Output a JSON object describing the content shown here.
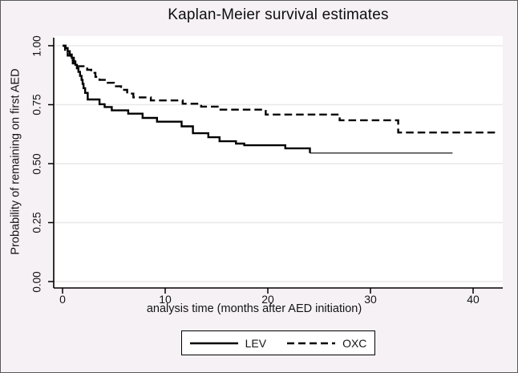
{
  "figure": {
    "bg_color": "#f6f1f5",
    "plot_bg": "#ffffff",
    "grid_color": "#e8e8e8",
    "axis_color": "#000000",
    "text_color": "#141414",
    "line_color": "#000000"
  },
  "chart_data": {
    "type": "line",
    "subtype": "kaplan-meier-step",
    "title": "Kaplan-Meier survival estimates",
    "xlabel": "analysis time (months after AED initiation)",
    "ylabel": "Probability of remaining on first AED",
    "xlim": [
      0,
      42.9
    ],
    "ylim": [
      0,
      1.04
    ],
    "x_ticks": [
      "0",
      "10",
      "20",
      "30",
      "40"
    ],
    "x_tick_values": [
      0,
      10,
      20,
      30,
      40
    ],
    "y_ticks": [
      "0.00",
      "0.25",
      "0.50",
      "0.75",
      "1.00"
    ],
    "y_tick_values": [
      0.0,
      0.25,
      0.5,
      0.75,
      1.0
    ],
    "grid": "horizontal",
    "legend_position": "bottom-center",
    "series": [
      {
        "name": "LEV",
        "line_style": "solid",
        "points": [
          [
            0,
            1.0
          ],
          [
            0.3,
            0.99
          ],
          [
            0.5,
            0.977
          ],
          [
            0.7,
            0.963
          ],
          [
            0.9,
            0.949
          ],
          [
            1.1,
            0.934
          ],
          [
            1.25,
            0.919
          ],
          [
            1.4,
            0.904
          ],
          [
            1.55,
            0.889
          ],
          [
            1.7,
            0.872
          ],
          [
            1.85,
            0.855
          ],
          [
            1.95,
            0.838
          ],
          [
            2.05,
            0.82
          ],
          [
            2.2,
            0.8
          ],
          [
            2.45,
            0.772
          ],
          [
            3.6,
            0.752
          ],
          [
            4.1,
            0.74
          ],
          [
            4.8,
            0.726
          ],
          [
            6.4,
            0.712
          ],
          [
            7.8,
            0.694
          ],
          [
            9.2,
            0.678
          ],
          [
            11.6,
            0.658
          ],
          [
            12.7,
            0.629
          ],
          [
            14.2,
            0.612
          ],
          [
            15.3,
            0.595
          ],
          [
            16.9,
            0.585
          ],
          [
            17.7,
            0.578
          ],
          [
            21.7,
            0.565
          ],
          [
            24.1,
            0.545
          ]
        ],
        "end_t": 38.0,
        "thin_tail_from_t": 24.1
      },
      {
        "name": "OXC",
        "line_style": "dashed",
        "points": [
          [
            0,
            1.0
          ],
          [
            0.25,
            0.978
          ],
          [
            0.5,
            0.958
          ],
          [
            0.8,
            0.94
          ],
          [
            1.0,
            0.925
          ],
          [
            1.2,
            0.913
          ],
          [
            2.4,
            0.898
          ],
          [
            2.8,
            0.885
          ],
          [
            3.2,
            0.868
          ],
          [
            3.6,
            0.855
          ],
          [
            4.4,
            0.843
          ],
          [
            5.0,
            0.828
          ],
          [
            5.7,
            0.813
          ],
          [
            6.3,
            0.797
          ],
          [
            6.9,
            0.781
          ],
          [
            8.6,
            0.768
          ],
          [
            11.7,
            0.754
          ],
          [
            13.5,
            0.742
          ],
          [
            15.3,
            0.729
          ],
          [
            19.8,
            0.708
          ],
          [
            27.0,
            0.684
          ],
          [
            32.7,
            0.632
          ]
        ],
        "end_t": 42.2
      }
    ]
  },
  "legend": {
    "items": [
      {
        "label": "LEV",
        "style": "solid"
      },
      {
        "label": "OXC",
        "style": "dashed"
      }
    ]
  }
}
